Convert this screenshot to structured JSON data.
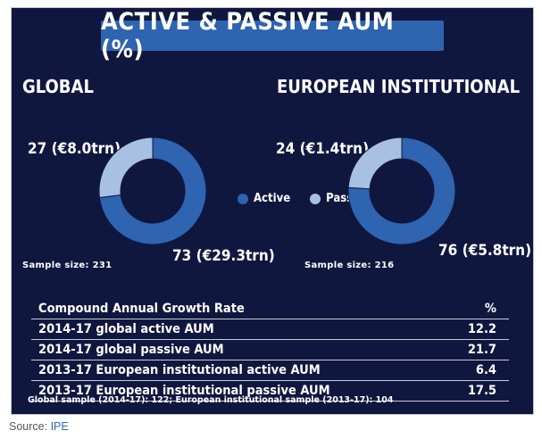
{
  "title": "ACTIVE & PASSIVE AUM (%)",
  "colors": {
    "active": "#2e64b0",
    "passive": "#a8c1e2",
    "background": "#10173f"
  },
  "legend": {
    "active": "Active",
    "passive": "Passive"
  },
  "chart_data": [
    {
      "type": "pie",
      "title": "GLOBAL",
      "categories": [
        "Active",
        "Passive"
      ],
      "values": [
        73,
        27
      ],
      "labels": [
        "73 (€29.3trn)",
        "27 (€8.0trn)"
      ],
      "sample": "Sample size: 231"
    },
    {
      "type": "pie",
      "title": "EUROPEAN INSTITUTIONAL",
      "categories": [
        "Active",
        "Passive"
      ],
      "values": [
        76,
        24
      ],
      "labels": [
        "76 (€5.8trn)",
        "24 (€1.4trn)"
      ],
      "sample": "Sample size: 216"
    }
  ],
  "table": {
    "header": {
      "label": "Compound Annual Growth Rate",
      "value": "%"
    },
    "rows": [
      {
        "label": "2014-17 global active AUM",
        "value": "12.2"
      },
      {
        "label": "2014-17 global passive AUM",
        "value": "21.7"
      },
      {
        "label": "2013-17 European institutional active AUM",
        "value": "6.4"
      },
      {
        "label": "2013-17 European institutional passive AUM",
        "value": "17.5"
      }
    ]
  },
  "footnote": "Global sample (2014-17): 122; European institutional sample (2013-17): 104",
  "source": {
    "prefix": "Source: ",
    "link": "IPE"
  }
}
